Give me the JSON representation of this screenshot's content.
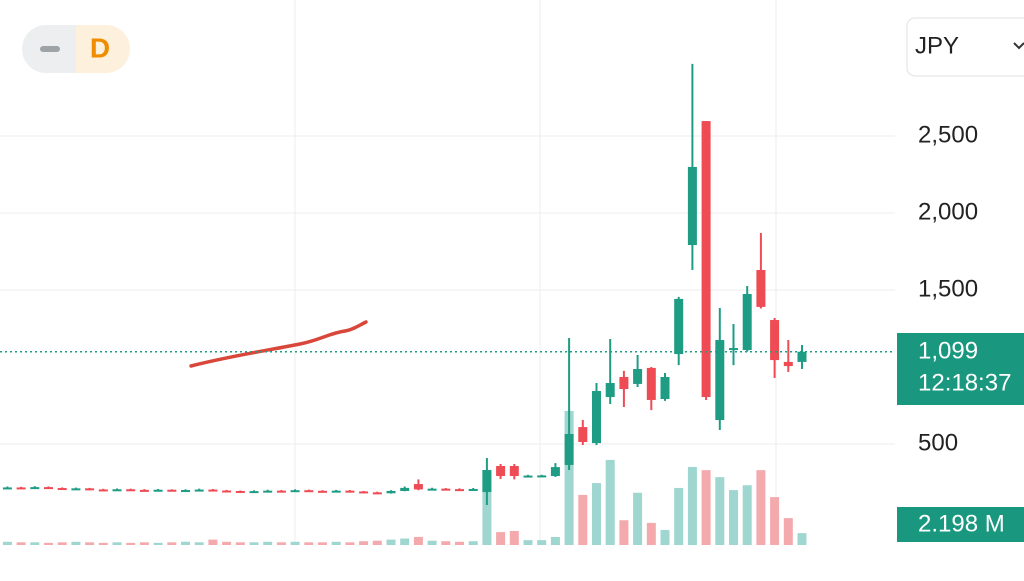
{
  "chart_data": {
    "type": "candlestick",
    "interval": "D",
    "currency": "JPY",
    "open": [
      212,
      218,
      215,
      220,
      214,
      209,
      212,
      205,
      203,
      206,
      202,
      200,
      203,
      199,
      201,
      204,
      198,
      195,
      190,
      194,
      197,
      192,
      200,
      196,
      193,
      197,
      192,
      186,
      180,
      195,
      240,
      205,
      210,
      207,
      204,
      188,
      357,
      357,
      290,
      290,
      292,
      364,
      610,
      506,
      805,
      935,
      890,
      994,
      792,
      1084,
      1792,
      2597,
      656,
      1117,
      1110,
      1630,
      1305,
      1033,
      1033
    ],
    "high": [
      224,
      222,
      226,
      224,
      218,
      217,
      215,
      209,
      211,
      210,
      207,
      208,
      206,
      206,
      210,
      208,
      202,
      198,
      199,
      203,
      201,
      206,
      204,
      200,
      202,
      201,
      195,
      190,
      200,
      224,
      270,
      216,
      214,
      212,
      214,
      409,
      370,
      370,
      300,
      300,
      376,
      1188,
      656,
      896,
      1182,
      975,
      1078,
      1000,
      961,
      1455,
      2968,
      2597,
      1383,
      1279,
      1526,
      1870,
      1318,
      1175,
      1143
    ],
    "low": [
      206,
      210,
      211,
      209,
      204,
      203,
      200,
      198,
      199,
      197,
      195,
      196,
      194,
      195,
      197,
      193,
      190,
      186,
      187,
      190,
      188,
      189,
      191,
      188,
      189,
      187,
      181,
      176,
      178,
      193,
      200,
      200,
      202,
      200,
      198,
      104,
      273,
      270,
      285,
      286,
      286,
      331,
      493,
      493,
      760,
      740,
      870,
      720,
      780,
      1012,
      1630,
      786,
      591,
      1012,
      1100,
      1380,
      929,
      968,
      987
    ],
    "close": [
      218,
      215,
      220,
      214,
      209,
      212,
      205,
      203,
      206,
      202,
      200,
      203,
      199,
      201,
      204,
      198,
      195,
      190,
      194,
      197,
      192,
      200,
      196,
      193,
      197,
      192,
      186,
      180,
      195,
      215,
      205,
      210,
      207,
      204,
      208,
      331,
      292,
      292,
      295,
      296,
      350,
      565,
      513,
      844,
      896,
      857,
      987,
      786,
      935,
      1442,
      2299,
      805,
      1175,
      1123,
      1474,
      1390,
      1045,
      1006,
      1099
    ],
    "volume": [
      0.6,
      0.5,
      0.5,
      0.4,
      0.5,
      0.6,
      0.5,
      0.4,
      0.5,
      0.4,
      0.5,
      0.4,
      0.5,
      0.6,
      0.5,
      1.0,
      0.6,
      0.5,
      0.5,
      0.6,
      0.5,
      0.6,
      0.5,
      0.5,
      0.6,
      0.5,
      0.7,
      0.8,
      1.0,
      1.2,
      1.5,
      0.8,
      0.7,
      0.6,
      0.7,
      13.9,
      2.4,
      2.6,
      0.9,
      0.9,
      1.5,
      24.9,
      9.3,
      11.5,
      15.8,
      4.6,
      9.7,
      4.1,
      2.8,
      10.6,
      14.5,
      13.9,
      12.6,
      10.2,
      11.1,
      13.9,
      8.9,
      5.0,
      2.198
    ],
    "up_color": "#1e9c84",
    "down_color": "#ef4b55",
    "up_volume_color": "#9fd6d0",
    "down_volume_color": "#f4aaad",
    "ylim": [
      0,
      3000
    ],
    "yticks": [
      {
        "value": 500,
        "label": "500"
      },
      {
        "value": 1500,
        "label": "1,500"
      },
      {
        "value": 2000,
        "label": "2,000"
      },
      {
        "value": 2500,
        "label": "2,500"
      }
    ],
    "vlim": [
      0,
      26
    ],
    "grid": true,
    "current_price": {
      "value": 1099,
      "label": "1,099"
    },
    "countdown": "12:18:37",
    "current_volume": {
      "value": 2.198,
      "label": "2.198 M"
    }
  }
}
